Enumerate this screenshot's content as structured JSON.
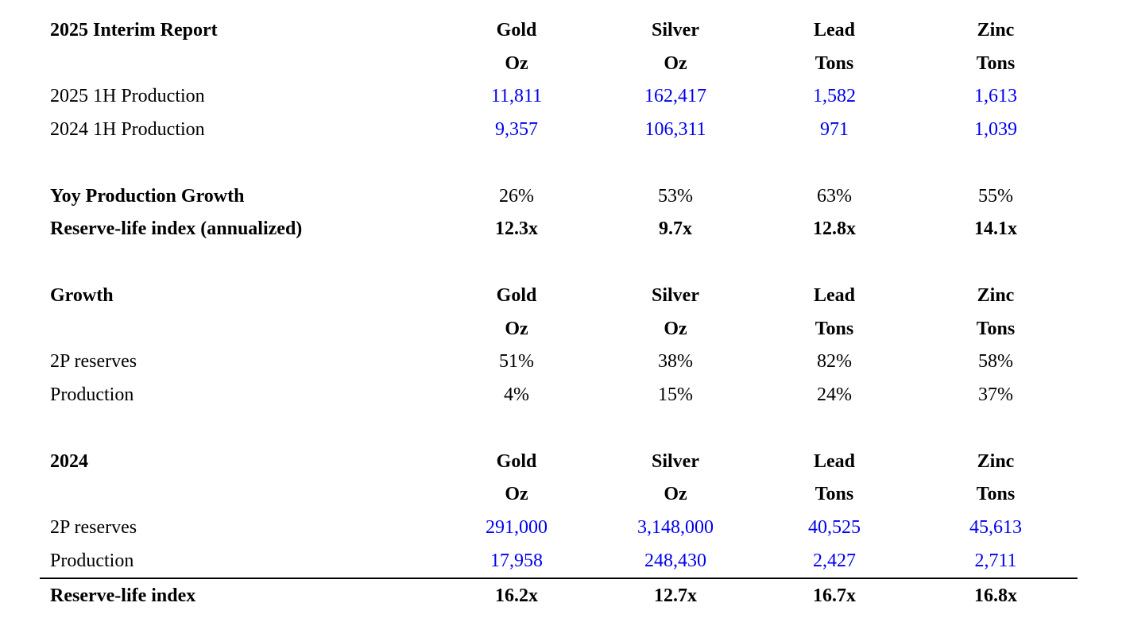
{
  "document": {
    "title": "2025 Interim Report",
    "background_color": "#ffffff",
    "text_color": "#000000",
    "value_accent_color": "#0000ee"
  },
  "columns": [
    "Gold",
    "Silver",
    "Lead",
    "Zinc"
  ],
  "units": [
    "Oz",
    "Oz",
    "Tons",
    "Tons"
  ],
  "rows": [
    {
      "label": "2025 Interim Report",
      "label_bold": true,
      "cells": [
        "Gold",
        "Silver",
        "Lead",
        "Zinc"
      ],
      "cells_bold": true,
      "cells_blue": false,
      "top_border": false
    },
    {
      "label": "",
      "label_bold": false,
      "cells": [
        "Oz",
        "Oz",
        "Tons",
        "Tons"
      ],
      "cells_bold": true,
      "cells_blue": false,
      "top_border": false
    },
    {
      "label": "2025 1H Production",
      "label_bold": false,
      "cells": [
        "11,811",
        "162,417",
        "1,582",
        "1,613"
      ],
      "cells_bold": false,
      "cells_blue": true,
      "top_border": false
    },
    {
      "label": "2024 1H Production",
      "label_bold": false,
      "cells": [
        "9,357",
        "106,311",
        "971",
        "1,039"
      ],
      "cells_bold": false,
      "cells_blue": true,
      "top_border": false
    },
    {
      "label": "",
      "label_bold": false,
      "cells": [
        "",
        "",
        "",
        ""
      ],
      "cells_bold": false,
      "cells_blue": false,
      "top_border": false
    },
    {
      "label": "Yoy Production Growth",
      "label_bold": true,
      "cells": [
        "26%",
        "53%",
        "63%",
        "55%"
      ],
      "cells_bold": false,
      "cells_blue": false,
      "top_border": false
    },
    {
      "label": "Reserve-life index (annualized)",
      "label_bold": true,
      "cells": [
        "12.3x",
        "9.7x",
        "12.8x",
        "14.1x"
      ],
      "cells_bold": true,
      "cells_blue": false,
      "top_border": false
    },
    {
      "label": "",
      "label_bold": false,
      "cells": [
        "",
        "",
        "",
        ""
      ],
      "cells_bold": false,
      "cells_blue": false,
      "top_border": false
    },
    {
      "label": "Growth",
      "label_bold": true,
      "cells": [
        "Gold",
        "Silver",
        "Lead",
        "Zinc"
      ],
      "cells_bold": true,
      "cells_blue": false,
      "top_border": false
    },
    {
      "label": "",
      "label_bold": false,
      "cells": [
        "Oz",
        "Oz",
        "Tons",
        "Tons"
      ],
      "cells_bold": true,
      "cells_blue": false,
      "top_border": false
    },
    {
      "label": "2P reserves",
      "label_bold": false,
      "cells": [
        "51%",
        "38%",
        "82%",
        "58%"
      ],
      "cells_bold": false,
      "cells_blue": false,
      "top_border": false
    },
    {
      "label": "Production",
      "label_bold": false,
      "cells": [
        "4%",
        "15%",
        "24%",
        "37%"
      ],
      "cells_bold": false,
      "cells_blue": false,
      "top_border": false
    },
    {
      "label": "",
      "label_bold": false,
      "cells": [
        "",
        "",
        "",
        ""
      ],
      "cells_bold": false,
      "cells_blue": false,
      "top_border": false
    },
    {
      "label": "2024",
      "label_bold": true,
      "cells": [
        "Gold",
        "Silver",
        "Lead",
        "Zinc"
      ],
      "cells_bold": true,
      "cells_blue": false,
      "top_border": false
    },
    {
      "label": "",
      "label_bold": false,
      "cells": [
        "Oz",
        "Oz",
        "Tons",
        "Tons"
      ],
      "cells_bold": true,
      "cells_blue": false,
      "top_border": false
    },
    {
      "label": "2P reserves",
      "label_bold": false,
      "cells": [
        "291,000",
        "3,148,000",
        "40,525",
        "45,613"
      ],
      "cells_bold": false,
      "cells_blue": true,
      "top_border": false
    },
    {
      "label": "Production",
      "label_bold": false,
      "cells": [
        "17,958",
        "248,430",
        "2,427",
        "2,711"
      ],
      "cells_bold": false,
      "cells_blue": true,
      "top_border": false
    },
    {
      "label": "Reserve-life index",
      "label_bold": true,
      "cells": [
        "16.2x",
        "12.7x",
        "16.7x",
        "16.8x"
      ],
      "cells_bold": true,
      "cells_blue": false,
      "top_border": true
    }
  ]
}
